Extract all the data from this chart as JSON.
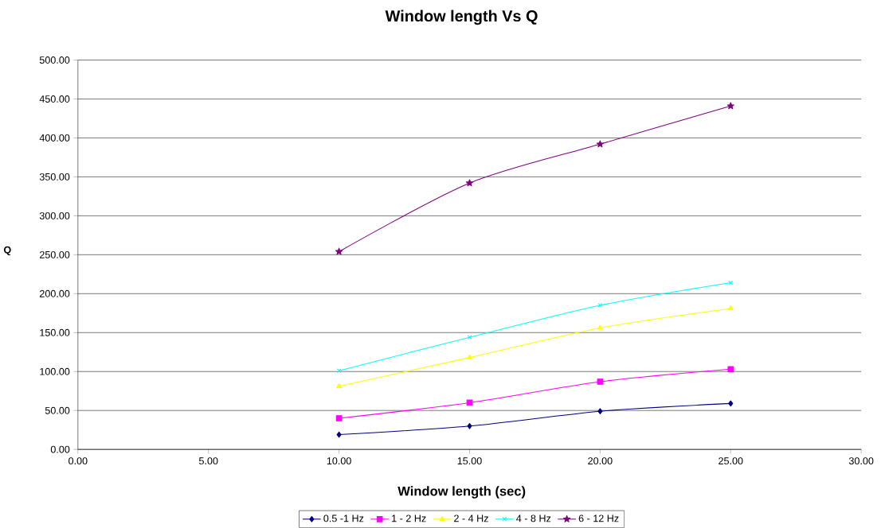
{
  "chart_data": {
    "type": "line",
    "title": "Window length Vs Q",
    "xlabel": "Window length (sec)",
    "ylabel": "Q",
    "x": [
      10,
      15,
      20,
      25
    ],
    "series": [
      {
        "name": "0.5 -1 Hz",
        "color": "#000080",
        "marker": "diamond",
        "values": [
          19,
          30,
          49,
          59
        ]
      },
      {
        "name": "1 - 2 Hz",
        "color": "#ff00ff",
        "marker": "square",
        "values": [
          40,
          60,
          87,
          103
        ]
      },
      {
        "name": "2 - 4 Hz",
        "color": "#ffff00",
        "marker": "triangle",
        "values": [
          81,
          118,
          156,
          181
        ]
      },
      {
        "name": "4 - 8 Hz",
        "color": "#00ffff",
        "marker": "cross",
        "values": [
          101,
          144,
          185,
          214
        ]
      },
      {
        "name": "6 - 12 Hz",
        "color": "#800080",
        "marker": "star",
        "values": [
          254,
          342,
          392,
          441
        ]
      }
    ],
    "xlim": [
      0,
      30
    ],
    "xticks": [
      {
        "value": 0,
        "label": "0.00"
      },
      {
        "value": 5,
        "label": "5.00"
      },
      {
        "value": 10,
        "label": "10.00"
      },
      {
        "value": 15,
        "label": "15.00"
      },
      {
        "value": 20,
        "label": "20.00"
      },
      {
        "value": 25,
        "label": "25.00"
      },
      {
        "value": 30,
        "label": "30.00"
      }
    ],
    "ylim": [
      0,
      500
    ],
    "yticks": [
      {
        "value": 0,
        "label": "0.00"
      },
      {
        "value": 50,
        "label": "50.00"
      },
      {
        "value": 100,
        "label": "100.00"
      },
      {
        "value": 150,
        "label": "150.00"
      },
      {
        "value": 200,
        "label": "200.00"
      },
      {
        "value": 250,
        "label": "250.00"
      },
      {
        "value": 300,
        "label": "300.00"
      },
      {
        "value": 350,
        "label": "350.00"
      },
      {
        "value": 400,
        "label": "400.00"
      },
      {
        "value": 450,
        "label": "450.00"
      },
      {
        "value": 500,
        "label": "500.00"
      }
    ],
    "grid": "y",
    "legend": "bottom",
    "line_style": "solid"
  }
}
